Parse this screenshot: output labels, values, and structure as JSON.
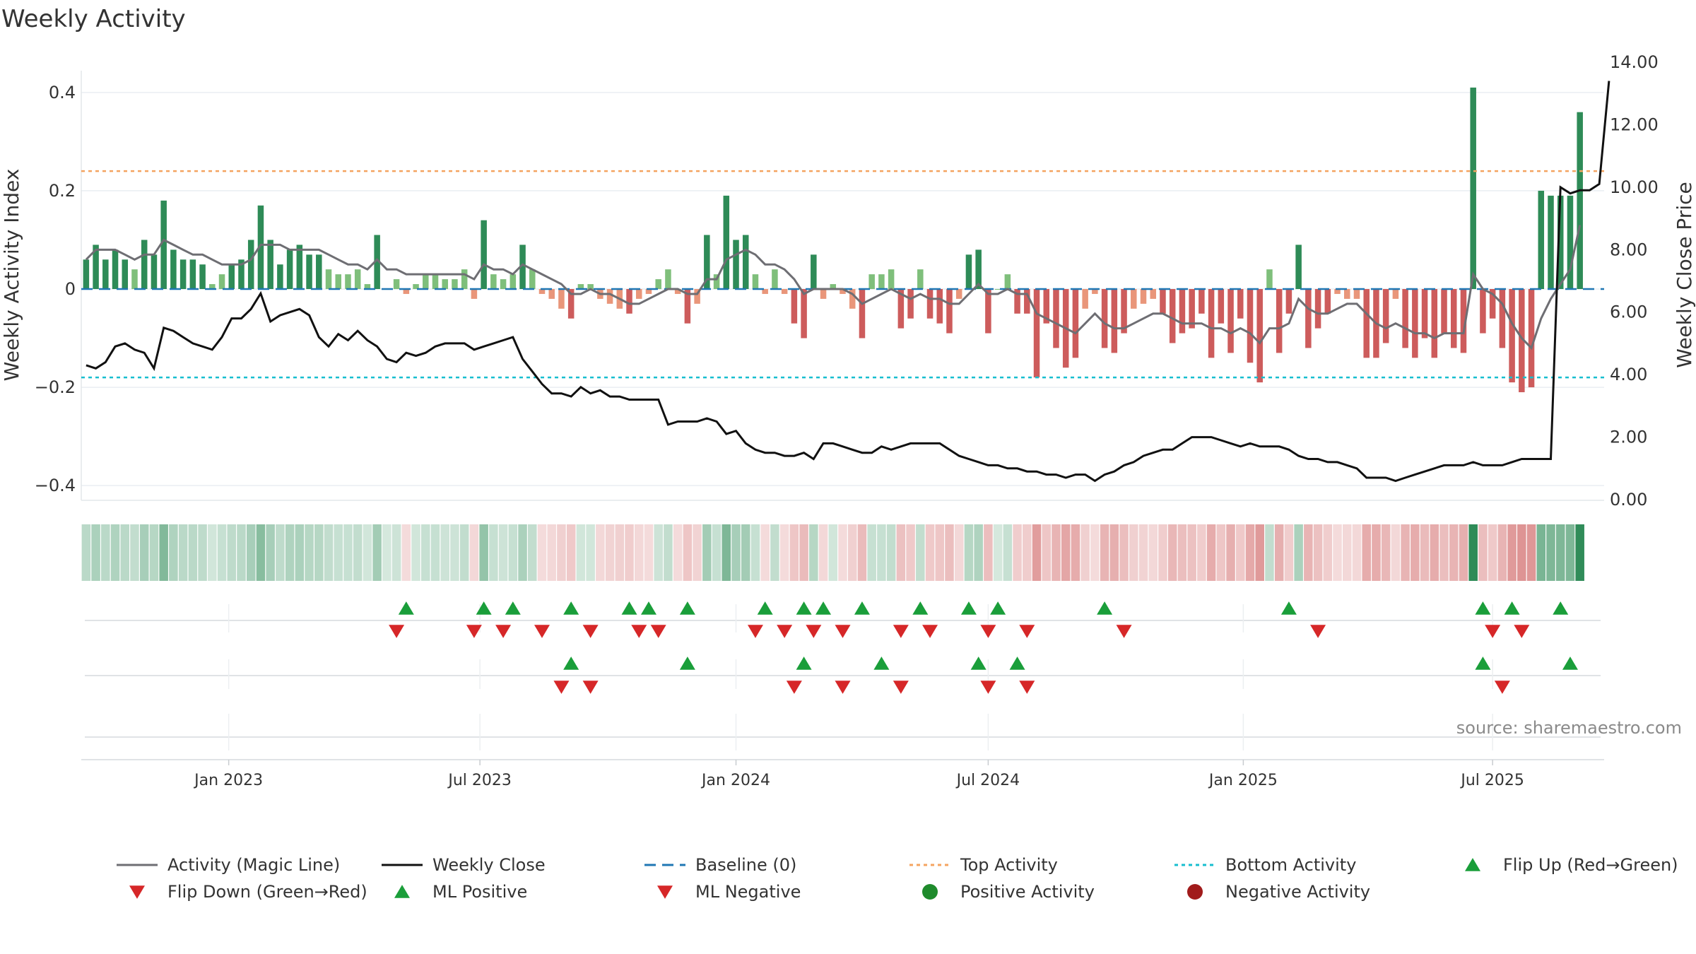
{
  "chart_data": {
    "type": "bar",
    "title": "Weekly Activity",
    "ylabel_left": "Weekly Activity Index",
    "ylabel_right": "Weekly Close Price",
    "ylim_left": [
      -0.43,
      0.43
    ],
    "ylim_right": [
      0.0,
      14.0
    ],
    "yticks_left": [
      {
        "v": 0.4,
        "label": "0.4"
      },
      {
        "v": 0.2,
        "label": "0.2"
      },
      {
        "v": 0.0,
        "label": "0"
      },
      {
        "v": -0.2,
        "label": "−0.2"
      },
      {
        "v": -0.4,
        "label": "−0.4"
      }
    ],
    "yticks_right": [
      {
        "v": 14,
        "label": "14.00"
      },
      {
        "v": 12,
        "label": "12.00"
      },
      {
        "v": 10,
        "label": "10.00"
      },
      {
        "v": 8,
        "label": "8.00"
      },
      {
        "v": 6,
        "label": "6.00"
      },
      {
        "v": 4,
        "label": "4.00"
      },
      {
        "v": 2,
        "label": "2.00"
      },
      {
        "v": 0,
        "label": "0.00"
      }
    ],
    "x_start_week": 0,
    "x_end_week": 157,
    "xticks": [
      {
        "week": 14.7,
        "label": "Jan 2023"
      },
      {
        "week": 40.6,
        "label": "Jul 2023"
      },
      {
        "week": 67.0,
        "label": "Jan 2024"
      },
      {
        "week": 93.0,
        "label": "Jul 2024"
      },
      {
        "week": 119.3,
        "label": "Jan 2025"
      },
      {
        "week": 145.0,
        "label": "Jul 2025"
      }
    ],
    "top_activity": 0.24,
    "bottom_activity": -0.18,
    "baseline": 0,
    "activity": [
      0.06,
      0.09,
      0.06,
      0.08,
      0.06,
      0.04,
      0.1,
      0.07,
      0.18,
      0.08,
      0.06,
      0.06,
      0.05,
      0.01,
      0.03,
      0.05,
      0.06,
      0.1,
      0.17,
      0.1,
      0.05,
      0.08,
      0.09,
      0.07,
      0.07,
      0.04,
      0.03,
      0.03,
      0.04,
      0.01,
      0.11,
      0.0,
      0.02,
      -0.01,
      0.01,
      0.03,
      0.03,
      0.02,
      0.02,
      0.04,
      -0.02,
      0.14,
      0.03,
      0.02,
      0.03,
      0.09,
      0.04,
      -0.01,
      -0.02,
      -0.04,
      -0.06,
      0.01,
      0.01,
      -0.02,
      -0.03,
      -0.04,
      -0.05,
      -0.02,
      -0.01,
      0.02,
      0.04,
      -0.01,
      -0.07,
      -0.03,
      0.11,
      0.03,
      0.19,
      0.1,
      0.11,
      0.03,
      -0.01,
      0.04,
      -0.01,
      -0.07,
      -0.1,
      0.07,
      -0.02,
      0.01,
      -0.01,
      -0.04,
      -0.1,
      0.03,
      0.03,
      0.04,
      -0.08,
      -0.06,
      0.04,
      -0.06,
      -0.07,
      -0.09,
      -0.02,
      0.07,
      0.08,
      -0.09,
      0.0,
      0.03,
      -0.05,
      -0.05,
      -0.18,
      -0.07,
      -0.12,
      -0.16,
      -0.14,
      -0.04,
      -0.01,
      -0.12,
      -0.13,
      -0.09,
      -0.04,
      -0.03,
      -0.02,
      -0.05,
      -0.11,
      -0.09,
      -0.08,
      -0.05,
      -0.14,
      -0.07,
      -0.13,
      -0.06,
      -0.15,
      -0.19,
      0.04,
      -0.13,
      -0.05,
      0.09,
      -0.12,
      -0.08,
      -0.05,
      -0.01,
      -0.02,
      -0.02,
      -0.14,
      -0.14,
      -0.11,
      -0.02,
      -0.12,
      -0.14,
      -0.1,
      -0.14,
      -0.09,
      -0.12,
      -0.13,
      0.41,
      -0.09,
      -0.06,
      -0.12,
      -0.19,
      -0.21,
      -0.2,
      0.2,
      0.19,
      0.19,
      0.19,
      0.36
    ],
    "magic_line": [
      0.06,
      0.08,
      0.08,
      0.08,
      0.07,
      0.06,
      0.07,
      0.07,
      0.1,
      0.09,
      0.08,
      0.07,
      0.07,
      0.06,
      0.05,
      0.05,
      0.05,
      0.06,
      0.09,
      0.09,
      0.09,
      0.08,
      0.08,
      0.08,
      0.08,
      0.07,
      0.06,
      0.05,
      0.05,
      0.04,
      0.06,
      0.04,
      0.04,
      0.03,
      0.03,
      0.03,
      0.03,
      0.03,
      0.03,
      0.03,
      0.02,
      0.05,
      0.04,
      0.04,
      0.03,
      0.05,
      0.04,
      0.03,
      0.02,
      0.01,
      -0.01,
      -0.01,
      0.0,
      -0.01,
      -0.01,
      -0.02,
      -0.03,
      -0.03,
      -0.02,
      -0.01,
      0.0,
      0.0,
      -0.01,
      -0.01,
      0.02,
      0.02,
      0.06,
      0.07,
      0.08,
      0.07,
      0.05,
      0.05,
      0.04,
      0.02,
      -0.01,
      0.0,
      0.0,
      0.0,
      0.0,
      -0.01,
      -0.03,
      -0.02,
      -0.01,
      0.0,
      -0.01,
      -0.02,
      -0.01,
      -0.02,
      -0.02,
      -0.03,
      -0.03,
      -0.01,
      0.01,
      -0.01,
      -0.01,
      0.0,
      -0.01,
      -0.01,
      -0.05,
      -0.06,
      -0.07,
      -0.08,
      -0.09,
      -0.07,
      -0.05,
      -0.07,
      -0.08,
      -0.08,
      -0.07,
      -0.06,
      -0.05,
      -0.05,
      -0.06,
      -0.07,
      -0.07,
      -0.07,
      -0.08,
      -0.08,
      -0.09,
      -0.08,
      -0.09,
      -0.11,
      -0.08,
      -0.08,
      -0.07,
      -0.02,
      -0.04,
      -0.05,
      -0.05,
      -0.04,
      -0.03,
      -0.03,
      -0.05,
      -0.07,
      -0.08,
      -0.07,
      -0.08,
      -0.09,
      -0.09,
      -0.1,
      -0.09,
      -0.09,
      -0.09,
      0.03,
      0.0,
      -0.01,
      -0.03,
      -0.07,
      -0.1,
      -0.12,
      -0.06,
      -0.02,
      0.01,
      0.04,
      0.13
    ],
    "weekly_close": [
      4.3,
      4.2,
      4.4,
      4.9,
      5.0,
      4.8,
      4.7,
      4.2,
      5.5,
      5.4,
      5.2,
      5.0,
      4.9,
      4.8,
      5.2,
      5.8,
      5.8,
      6.1,
      6.6,
      5.7,
      5.9,
      6.0,
      6.1,
      5.9,
      5.2,
      4.9,
      5.3,
      5.1,
      5.4,
      5.1,
      4.9,
      4.5,
      4.4,
      4.7,
      4.6,
      4.7,
      4.9,
      5.0,
      5.0,
      5.0,
      4.8,
      4.9,
      5.0,
      5.1,
      5.2,
      4.5,
      4.1,
      3.7,
      3.4,
      3.4,
      3.3,
      3.6,
      3.4,
      3.5,
      3.3,
      3.3,
      3.2,
      3.2,
      3.2,
      3.2,
      2.4,
      2.5,
      2.5,
      2.5,
      2.6,
      2.5,
      2.1,
      2.2,
      1.8,
      1.6,
      1.5,
      1.5,
      1.4,
      1.4,
      1.5,
      1.3,
      1.8,
      1.8,
      1.7,
      1.6,
      1.5,
      1.5,
      1.7,
      1.6,
      1.7,
      1.8,
      1.8,
      1.8,
      1.8,
      1.6,
      1.4,
      1.3,
      1.2,
      1.1,
      1.1,
      1.0,
      1.0,
      0.9,
      0.9,
      0.8,
      0.8,
      0.7,
      0.8,
      0.8,
      0.6,
      0.8,
      0.9,
      1.1,
      1.2,
      1.4,
      1.5,
      1.6,
      1.6,
      1.8,
      2.0,
      2.0,
      2.0,
      1.9,
      1.8,
      1.7,
      1.8,
      1.7,
      1.7,
      1.7,
      1.6,
      1.4,
      1.3,
      1.3,
      1.2,
      1.2,
      1.1,
      1.0,
      0.7,
      0.7,
      0.7,
      0.6,
      0.7,
      0.8,
      0.9,
      1.0,
      1.1,
      1.1,
      1.1,
      1.2,
      1.1,
      1.1,
      1.1,
      1.2,
      1.3,
      1.3,
      1.3,
      1.3,
      10.0,
      9.8,
      9.9,
      9.9,
      10.1,
      13.4
    ],
    "flip_up_row1": [
      33,
      41,
      44,
      50,
      56,
      58,
      62,
      70,
      74,
      76,
      80,
      86,
      91,
      94,
      105,
      124,
      144,
      147,
      152
    ],
    "flip_down_row1": [
      32,
      40,
      43,
      47,
      52,
      57,
      59,
      69,
      72,
      75,
      78,
      84,
      87,
      93,
      97,
      107,
      127,
      145,
      148
    ],
    "ml_positive_row2": [
      50,
      62,
      74,
      82,
      92,
      96,
      144,
      153
    ],
    "ml_negative_row2": [
      49,
      52,
      73,
      78,
      84,
      93,
      97,
      146
    ],
    "source_text": "source: sharemaestro.com",
    "colors": {
      "pos_strong": "#2e8b57",
      "pos_light": "#7fbf7b",
      "neg_strong": "#cd5c5c",
      "neg_light": "#e9967a",
      "magic_line": "#6e6e73",
      "close_line": "#111111",
      "baseline": "#1f77b4",
      "top_activity": "#f4a460",
      "bottom_activity": "#17becf",
      "flip_up": "#1a9e3a",
      "flip_down": "#d62728",
      "positive_activity": "#1f8b2c",
      "negative_activity": "#a11b1b"
    },
    "legend": [
      {
        "label": "Activity (Magic Line)",
        "kind": "line",
        "color_key": "magic_line"
      },
      {
        "label": "Weekly Close",
        "kind": "line",
        "color_key": "close_line"
      },
      {
        "label": "Baseline (0)",
        "kind": "dash",
        "color_key": "baseline"
      },
      {
        "label": "Top Activity",
        "kind": "dot",
        "color_key": "top_activity"
      },
      {
        "label": "Bottom Activity",
        "kind": "dot",
        "color_key": "bottom_activity"
      },
      {
        "label": "Flip Up (Red→Green)",
        "kind": "tri-up",
        "color_key": "flip_up"
      },
      {
        "label": "Flip Down (Green→Red)",
        "kind": "tri-down",
        "color_key": "flip_down"
      },
      {
        "label": "ML Positive",
        "kind": "tri-up",
        "color_key": "flip_up"
      },
      {
        "label": "ML Negative",
        "kind": "tri-down",
        "color_key": "flip_down"
      },
      {
        "label": "Positive Activity",
        "kind": "circle",
        "color_key": "positive_activity"
      },
      {
        "label": "Negative Activity",
        "kind": "circle",
        "color_key": "negative_activity"
      }
    ]
  }
}
